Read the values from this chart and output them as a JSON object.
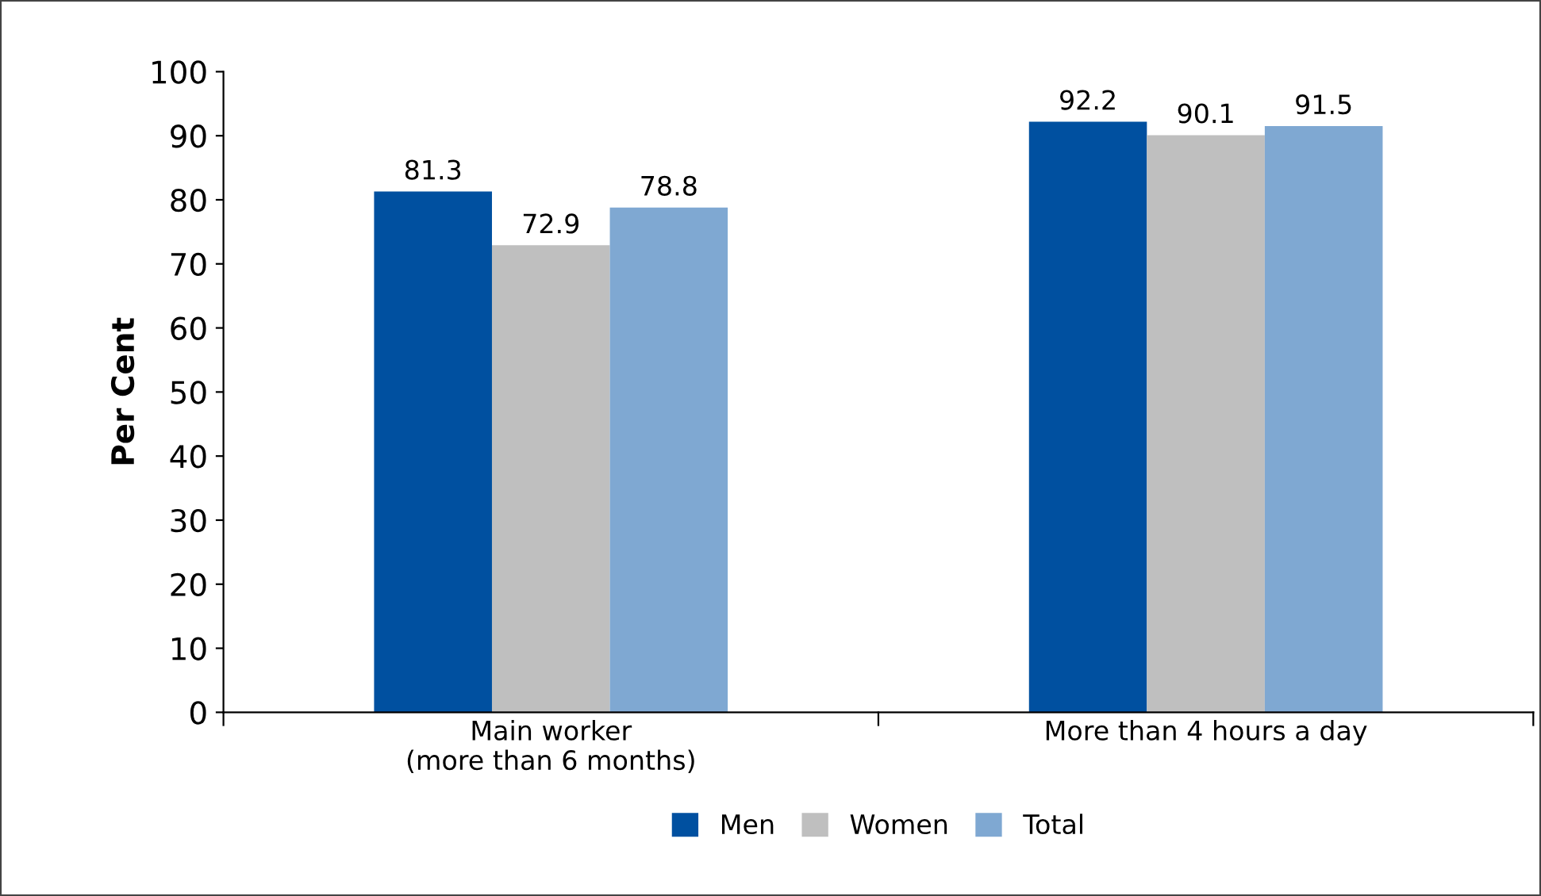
{
  "chart_data": {
    "type": "bar",
    "ylabel": "Per Cent",
    "categories": [
      "Main worker\n(more than 6 months)",
      "More than 4 hours a day"
    ],
    "series": [
      {
        "name": "Men",
        "color": "#0050a0",
        "values": [
          81.3,
          92.2
        ]
      },
      {
        "name": "Women",
        "color": "#bfbfbf",
        "values": [
          72.9,
          90.1
        ]
      },
      {
        "name": "Total",
        "color": "#7fa8d2",
        "values": [
          78.8,
          91.5
        ]
      }
    ],
    "ylim": [
      0,
      100
    ],
    "yticks": [
      0,
      10,
      20,
      30,
      40,
      50,
      60,
      70,
      80,
      90,
      100
    ],
    "data_labels": true,
    "grid": false,
    "legend": "bottom"
  }
}
